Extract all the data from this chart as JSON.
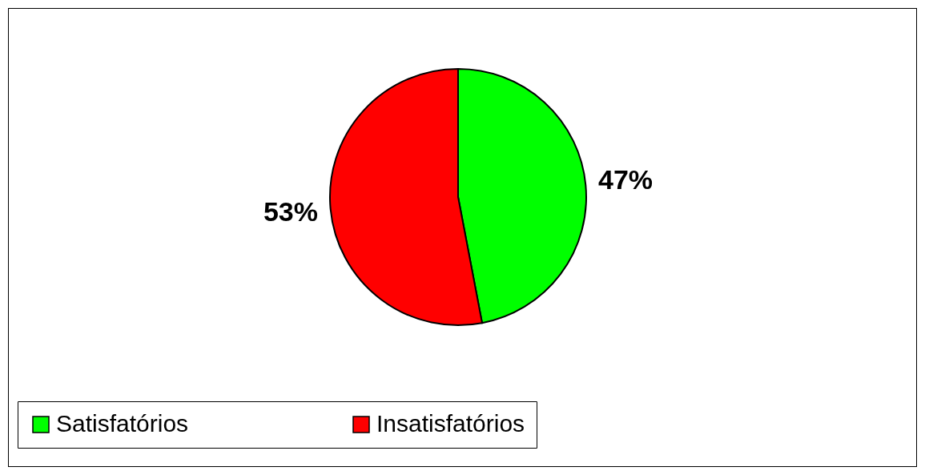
{
  "chart_data": {
    "type": "pie",
    "categories": [
      "Satisfatórios",
      "Insatisfatórios"
    ],
    "values": [
      47,
      53
    ],
    "colors": [
      "#00ff00",
      "#ff0000"
    ],
    "value_labels": [
      "47%",
      "53%"
    ],
    "legend": "bottom"
  }
}
